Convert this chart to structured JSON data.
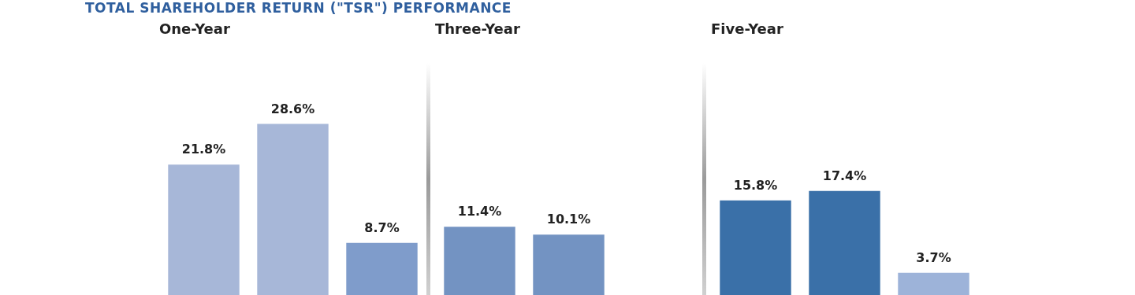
{
  "chart_data": [
    {
      "type": "bar",
      "title": "One-Year",
      "annotations": [
        "TOTAL SHAREHOLDER RETURN (\"TSR\") PERFORMANCE"
      ],
      "categories": [
        null,
        null,
        null
      ],
      "values": [
        21.8,
        28.6,
        8.7
      ],
      "colors": [
        "#a7b7d8",
        "#a7b7d8",
        "#7f9ccb"
      ],
      "value_labels": [
        "21.8%",
        "28.6%",
        "8.7%"
      ]
    },
    {
      "type": "bar",
      "title": "Three-Year",
      "categories": [
        null,
        null
      ],
      "values": [
        11.4,
        10.1
      ],
      "colors": [
        "#7393c2",
        "#7393c2"
      ],
      "value_labels": [
        "11.4%",
        "10.1%"
      ]
    },
    {
      "type": "bar",
      "title": "Five-Year",
      "categories": [
        null,
        null,
        null
      ],
      "values": [
        15.8,
        17.4,
        3.7
      ],
      "colors": [
        "#3a70a8",
        "#3a70a8",
        "#9db3d9"
      ],
      "value_labels": [
        "15.8%",
        "17.4%",
        "3.7%"
      ]
    }
  ]
}
